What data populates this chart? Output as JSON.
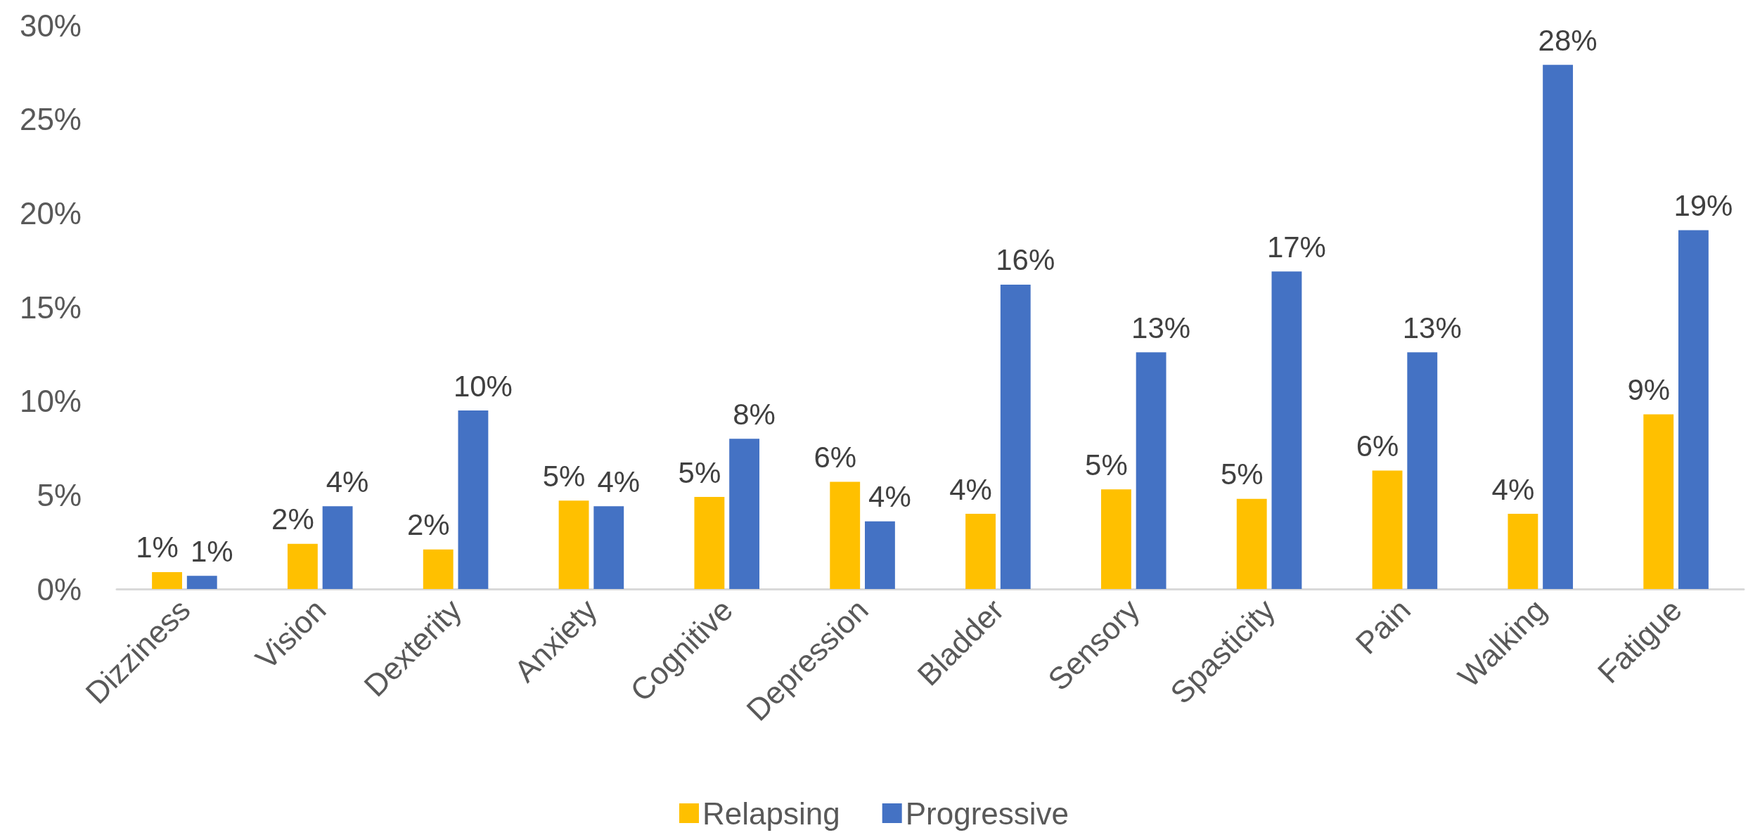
{
  "chart_data": {
    "type": "bar",
    "categories": [
      "Dizziness",
      "Vision",
      "Dexterity",
      "Anxiety",
      "Cognitive",
      "Depression",
      "Bladder",
      "Sensory",
      "Spasticity",
      "Pain",
      "Walking",
      "Fatigue"
    ],
    "series": [
      {
        "name": "Relapsing",
        "color": "#ffc000",
        "values": [
          0.9,
          2.4,
          2.1,
          4.7,
          4.9,
          5.7,
          4.0,
          5.3,
          4.8,
          6.3,
          4.0,
          9.3
        ],
        "value_labels": [
          "1%",
          "2%",
          "2%",
          "5%",
          "5%",
          "6%",
          "4%",
          "5%",
          "5%",
          "6%",
          "4%",
          "9%"
        ]
      },
      {
        "name": "Progressive",
        "color": "#4472c4",
        "values": [
          0.7,
          4.4,
          9.5,
          4.4,
          8.0,
          3.6,
          16.2,
          12.6,
          16.9,
          12.6,
          27.9,
          19.1
        ],
        "value_labels": [
          "1%",
          "4%",
          "10%",
          "4%",
          "8%",
          "4%",
          "16%",
          "13%",
          "17%",
          "13%",
          "28%",
          "19%"
        ]
      }
    ],
    "ylim": [
      0,
      30
    ],
    "yticks": [
      {
        "value": 0,
        "label": "0%"
      },
      {
        "value": 5,
        "label": "5%"
      },
      {
        "value": 10,
        "label": "10%"
      },
      {
        "value": 15,
        "label": "15%"
      },
      {
        "value": 20,
        "label": "20%"
      },
      {
        "value": 25,
        "label": "25%"
      },
      {
        "value": 30,
        "label": "30%"
      }
    ],
    "grid": false,
    "legend": "bottom"
  }
}
